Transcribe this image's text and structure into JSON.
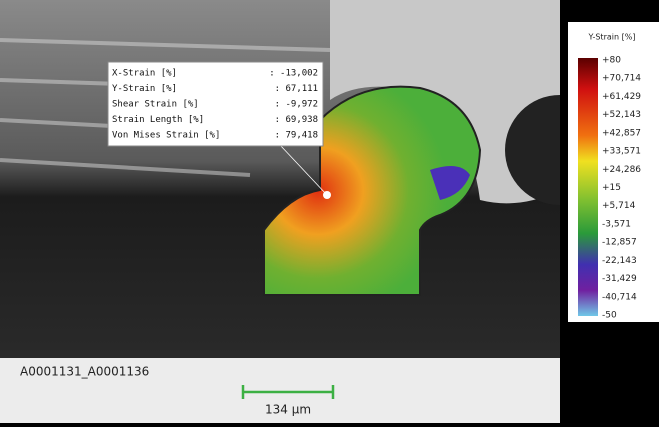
{
  "info_box": {
    "rows": [
      {
        "label": "X-Strain [%]",
        "value": ": -13,002"
      },
      {
        "label": "Y-Strain [%]",
        "value": ": 67,111"
      },
      {
        "label": "Shear Strain [%]",
        "value": ": -9,972"
      },
      {
        "label": "Strain Length [%]",
        "value": ": 69,938"
      },
      {
        "label": "Von Mises Strain [%]",
        "value": ": 79,418"
      }
    ]
  },
  "legend": {
    "title": "Y-Strain [%]",
    "ticks": [
      "+80",
      "+70,714",
      "+61,429",
      "+52,143",
      "+42,857",
      "+33,571",
      "+24,286",
      "+15",
      "+5,714",
      "-3,571",
      "-12,857",
      "-22,143",
      "-31,429",
      "-40,714",
      "-50"
    ]
  },
  "caption": "A0001131_A0001136",
  "scale_bar": "134 µm"
}
